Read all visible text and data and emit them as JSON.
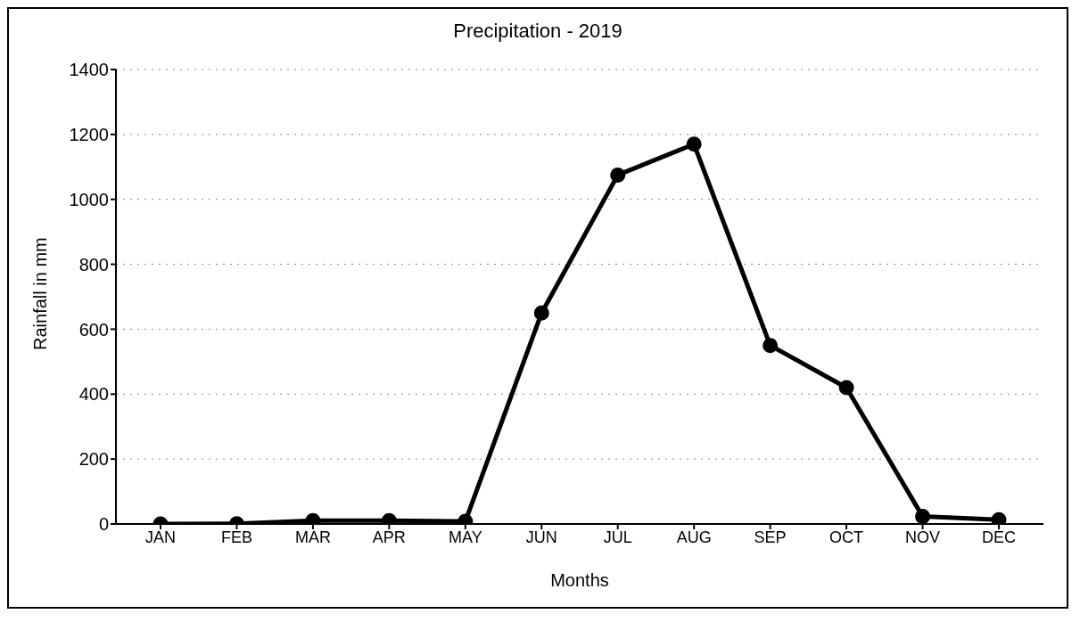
{
  "chart_data": {
    "type": "line",
    "title": "Precipitation - 2019",
    "xlabel": "Months",
    "ylabel": "Rainfall in mm",
    "categories": [
      "JAN",
      "FEB",
      "MAR",
      "APR",
      "MAY",
      "JUN",
      "JUL",
      "AUG",
      "SEP",
      "OCT",
      "NOV",
      "DEC"
    ],
    "series": [
      {
        "color": "#000000",
        "values": [
          0,
          1,
          10,
          10,
          8,
          650,
          1075,
          1170,
          550,
          420,
          23,
          13
        ]
      }
    ],
    "ylim": [
      0,
      1400
    ],
    "yticks": [
      0,
      200,
      400,
      600,
      800,
      1000,
      1200,
      1400
    ],
    "grid": "y",
    "marker": "circle",
    "line_style": "solid"
  }
}
